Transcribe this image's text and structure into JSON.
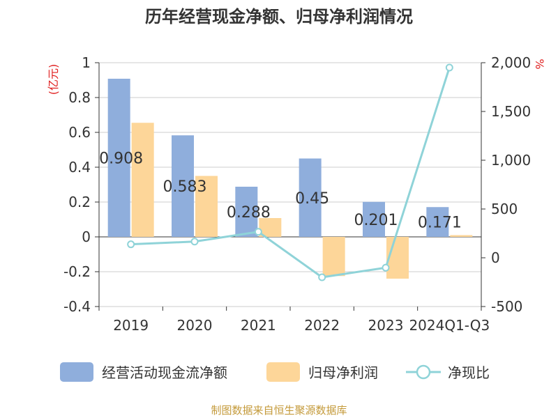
{
  "chart_data": {
    "type": "bar",
    "title": "历年经营现金净额、归母净利润情况",
    "categories": [
      "2019",
      "2020",
      "2021",
      "2022",
      "2023",
      "2024Q1-Q3"
    ],
    "y_left": {
      "unit": "(亿元)",
      "ylim": [
        -0.4,
        1
      ],
      "ticks": [
        "1",
        "0.8",
        "0.6",
        "0.4",
        "0.2",
        "0",
        "-0.2",
        "-0.4"
      ],
      "tick_values": [
        1,
        0.8,
        0.6,
        0.4,
        0.2,
        0,
        -0.2,
        -0.4
      ]
    },
    "y_right": {
      "unit": "%",
      "ylim": [
        -500,
        2000
      ],
      "ticks": [
        "2,000",
        "1,500",
        "1,000",
        "500",
        "0",
        "-500"
      ],
      "tick_values": [
        2000,
        1500,
        1000,
        500,
        0,
        -500
      ]
    },
    "series": [
      {
        "name": "经营活动现金流净额",
        "type": "bar",
        "axis": "left",
        "color": "#8faedc",
        "values": [
          0.908,
          0.583,
          0.288,
          0.45,
          0.201,
          0.171
        ],
        "labels": [
          "0.908",
          "0.583",
          "0.288",
          "0.45",
          "0.201",
          "0.171"
        ]
      },
      {
        "name": "归母净利润",
        "type": "bar",
        "axis": "left",
        "color": "#fdd699",
        "values": [
          0.655,
          0.35,
          0.108,
          -0.225,
          -0.24,
          0.01
        ]
      },
      {
        "name": "净现比",
        "type": "line",
        "axis": "right",
        "color": "#8fd3d8",
        "values": [
          138,
          166,
          266,
          -200,
          -102,
          1950
        ]
      }
    ],
    "grid": true,
    "legend": "bottom",
    "source": "制图数据来自恒生聚源数据库"
  }
}
